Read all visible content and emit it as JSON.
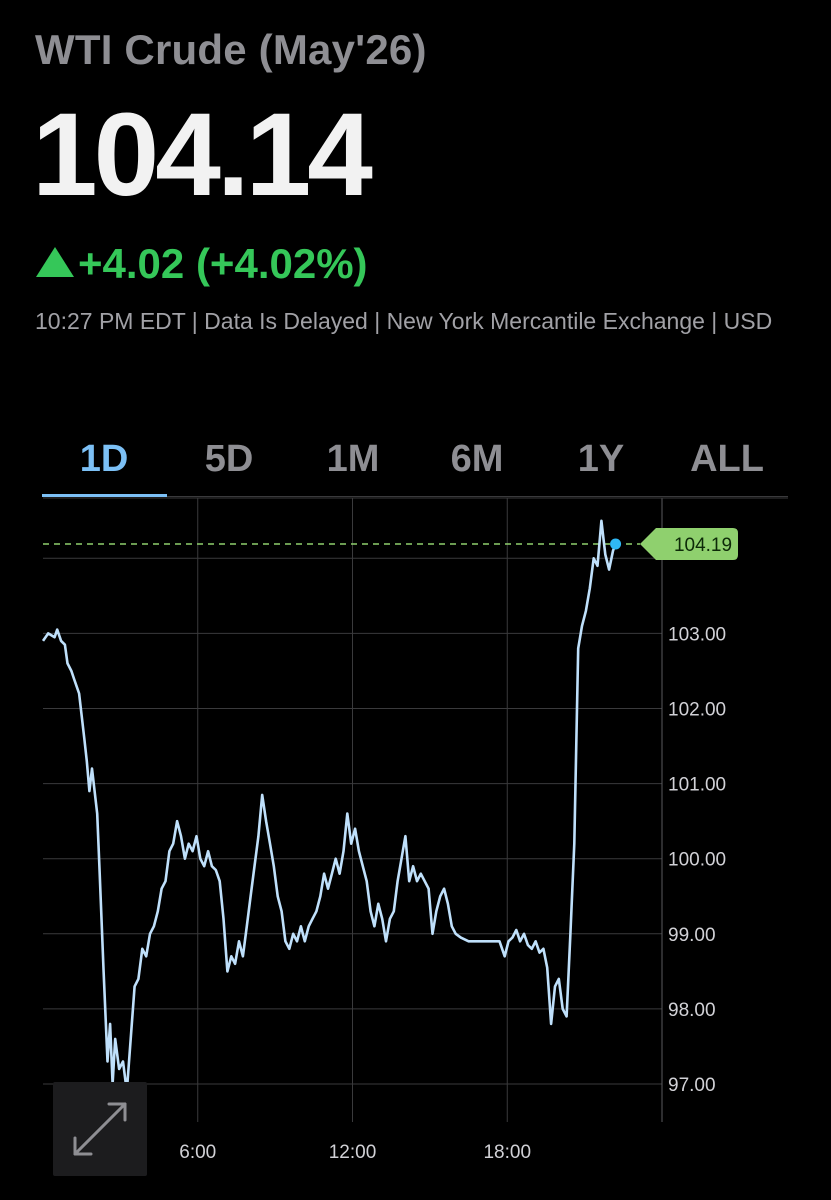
{
  "header": {
    "title": "WTI Crude (May'26)",
    "price": "104.14",
    "change": "+4.02 (+4.02%)",
    "meta": "10:27 PM EDT | Data Is Delayed | New York Mercantile Exchange | USD"
  },
  "tabs": [
    {
      "label": "1D",
      "active": true
    },
    {
      "label": "5D",
      "active": false
    },
    {
      "label": "1M",
      "active": false
    },
    {
      "label": "6M",
      "active": false
    },
    {
      "label": "1Y",
      "active": false
    },
    {
      "label": "ALL",
      "active": false
    }
  ],
  "colors": {
    "line": "#bfe0fb",
    "up": "#35c759",
    "accent": "#7cc0f5",
    "last_badge": "#8fd06e",
    "dot": "#2fb8f5"
  },
  "expand_icon": "expand-arrows-icon",
  "chart_data": {
    "type": "line",
    "x_ticks": [
      "6:00",
      "12:00",
      "18:00"
    ],
    "y_ticks": [
      "97.00",
      "98.00",
      "99.00",
      "100.00",
      "101.00",
      "102.00",
      "103.00"
    ],
    "last_value_label": "104.19",
    "last_value": 104.19,
    "ylim": [
      96.5,
      105.0
    ],
    "xlim_hours": [
      0,
      24
    ],
    "grid": true,
    "series": [
      {
        "values": [
          [
            0.0,
            102.9
          ],
          [
            0.2,
            103.0
          ],
          [
            0.45,
            102.95
          ],
          [
            0.55,
            103.05
          ],
          [
            0.7,
            102.9
          ],
          [
            0.85,
            102.85
          ],
          [
            0.95,
            102.6
          ],
          [
            1.1,
            102.5
          ],
          [
            1.2,
            102.4
          ],
          [
            1.4,
            102.2
          ],
          [
            1.5,
            101.9
          ],
          [
            1.6,
            101.6
          ],
          [
            1.7,
            101.3
          ],
          [
            1.8,
            100.9
          ],
          [
            1.9,
            101.2
          ],
          [
            2.1,
            100.6
          ],
          [
            2.2,
            99.8
          ],
          [
            2.35,
            98.5
          ],
          [
            2.5,
            97.3
          ],
          [
            2.6,
            97.8
          ],
          [
            2.7,
            97.0
          ],
          [
            2.8,
            97.6
          ],
          [
            2.95,
            97.2
          ],
          [
            3.1,
            97.3
          ],
          [
            3.25,
            96.9
          ],
          [
            3.4,
            97.6
          ],
          [
            3.55,
            98.3
          ],
          [
            3.7,
            98.4
          ],
          [
            3.85,
            98.8
          ],
          [
            4.0,
            98.7
          ],
          [
            4.15,
            99.0
          ],
          [
            4.3,
            99.1
          ],
          [
            4.45,
            99.3
          ],
          [
            4.6,
            99.6
          ],
          [
            4.75,
            99.7
          ],
          [
            4.9,
            100.1
          ],
          [
            5.05,
            100.2
          ],
          [
            5.2,
            100.5
          ],
          [
            5.35,
            100.3
          ],
          [
            5.5,
            100.0
          ],
          [
            5.65,
            100.2
          ],
          [
            5.8,
            100.1
          ],
          [
            5.95,
            100.3
          ],
          [
            6.1,
            100.0
          ],
          [
            6.25,
            99.9
          ],
          [
            6.4,
            100.1
          ],
          [
            6.55,
            99.9
          ],
          [
            6.7,
            99.85
          ],
          [
            6.85,
            99.7
          ],
          [
            7.0,
            99.2
          ],
          [
            7.15,
            98.5
          ],
          [
            7.3,
            98.7
          ],
          [
            7.45,
            98.6
          ],
          [
            7.6,
            98.9
          ],
          [
            7.75,
            98.7
          ],
          [
            7.9,
            99.1
          ],
          [
            8.05,
            99.5
          ],
          [
            8.2,
            99.9
          ],
          [
            8.35,
            100.3
          ],
          [
            8.5,
            100.85
          ],
          [
            8.65,
            100.5
          ],
          [
            8.8,
            100.2
          ],
          [
            8.95,
            99.9
          ],
          [
            9.1,
            99.5
          ],
          [
            9.25,
            99.3
          ],
          [
            9.4,
            98.9
          ],
          [
            9.55,
            98.8
          ],
          [
            9.7,
            99.0
          ],
          [
            9.85,
            98.9
          ],
          [
            10.0,
            99.1
          ],
          [
            10.15,
            98.9
          ],
          [
            10.3,
            99.1
          ],
          [
            10.45,
            99.2
          ],
          [
            10.6,
            99.3
          ],
          [
            10.75,
            99.5
          ],
          [
            10.9,
            99.8
          ],
          [
            11.05,
            99.6
          ],
          [
            11.2,
            99.8
          ],
          [
            11.35,
            100.0
          ],
          [
            11.5,
            99.8
          ],
          [
            11.65,
            100.1
          ],
          [
            11.8,
            100.6
          ],
          [
            11.95,
            100.2
          ],
          [
            12.1,
            100.4
          ],
          [
            12.25,
            100.1
          ],
          [
            12.4,
            99.9
          ],
          [
            12.55,
            99.7
          ],
          [
            12.7,
            99.3
          ],
          [
            12.85,
            99.1
          ],
          [
            13.0,
            99.4
          ],
          [
            13.15,
            99.2
          ],
          [
            13.3,
            98.9
          ],
          [
            13.45,
            99.2
          ],
          [
            13.6,
            99.3
          ],
          [
            13.75,
            99.7
          ],
          [
            13.9,
            100.0
          ],
          [
            14.05,
            100.3
          ],
          [
            14.2,
            99.7
          ],
          [
            14.35,
            99.9
          ],
          [
            14.5,
            99.7
          ],
          [
            14.65,
            99.8
          ],
          [
            14.8,
            99.7
          ],
          [
            14.95,
            99.6
          ],
          [
            15.1,
            99.0
          ],
          [
            15.25,
            99.3
          ],
          [
            15.4,
            99.5
          ],
          [
            15.55,
            99.6
          ],
          [
            15.7,
            99.4
          ],
          [
            15.85,
            99.1
          ],
          [
            16.0,
            99.0
          ],
          [
            16.2,
            98.95
          ],
          [
            16.5,
            98.9
          ],
          [
            16.8,
            98.9
          ],
          [
            17.1,
            98.9
          ],
          [
            17.4,
            98.9
          ],
          [
            17.7,
            98.9
          ],
          [
            17.9,
            98.7
          ],
          [
            18.05,
            98.9
          ],
          [
            18.2,
            98.95
          ],
          [
            18.35,
            99.05
          ],
          [
            18.5,
            98.9
          ],
          [
            18.65,
            99.0
          ],
          [
            18.8,
            98.85
          ],
          [
            18.95,
            98.8
          ],
          [
            19.1,
            98.9
          ],
          [
            19.25,
            98.75
          ],
          [
            19.4,
            98.8
          ],
          [
            19.55,
            98.55
          ],
          [
            19.7,
            97.8
          ],
          [
            19.85,
            98.3
          ],
          [
            20.0,
            98.4
          ],
          [
            20.15,
            98.0
          ],
          [
            20.3,
            97.9
          ],
          [
            20.45,
            99.0
          ],
          [
            20.6,
            100.2
          ],
          [
            20.75,
            102.8
          ],
          [
            20.9,
            103.1
          ],
          [
            21.05,
            103.3
          ],
          [
            21.2,
            103.6
          ],
          [
            21.35,
            104.0
          ],
          [
            21.5,
            103.9
          ],
          [
            21.65,
            104.5
          ],
          [
            21.8,
            104.05
          ],
          [
            21.95,
            103.85
          ],
          [
            22.1,
            104.1
          ],
          [
            22.2,
            104.19
          ]
        ]
      }
    ]
  }
}
